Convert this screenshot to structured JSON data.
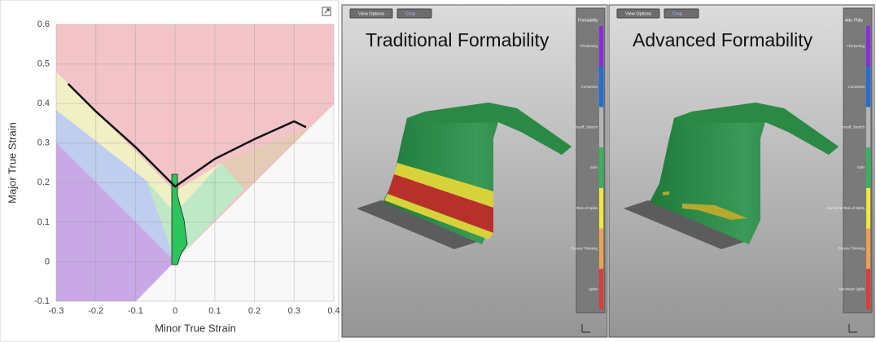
{
  "chart_data": {
    "type": "line",
    "x_label": "Minor True Strain",
    "y_label": "Major True Strain",
    "xlim": [
      -0.3,
      0.4
    ],
    "ylim": [
      -0.1,
      0.6
    ],
    "xticks": [
      -0.3,
      -0.2,
      -0.1,
      0,
      0.1,
      0.2,
      0.3,
      0.4
    ],
    "yticks": [
      -0.1,
      0,
      0.1,
      0.2,
      0.3,
      0.4,
      0.5,
      0.6
    ],
    "grid": true,
    "series": [
      {
        "color": "#111111",
        "x": [
          -0.27,
          -0.2,
          -0.1,
          0,
          0.1,
          0.2,
          0.3,
          0.33
        ],
        "values": [
          0.45,
          0.38,
          0.29,
          0.19,
          0.26,
          0.31,
          0.355,
          0.34
        ]
      }
    ]
  },
  "panels": [
    {
      "title": "Traditional Formability",
      "toolbar": [
        "View Options",
        "Crop"
      ],
      "legend_title": "Formability",
      "legend": [
        "Thickening",
        "Compress",
        "Insuff. Stretch",
        "Safe",
        "Risk of Splits",
        "Excess Thinning",
        "Splits"
      ],
      "colors": [
        "#8a2be2",
        "#1e6fd9",
        "#b5b5b5",
        "#2fb55a",
        "#f2ea3a",
        "#f0a050",
        "#e03a3a"
      ]
    },
    {
      "title": "Advanced Formability",
      "toolbar": [
        "View Options",
        "Crop"
      ],
      "legend_title": "Adv. Fblty",
      "legend": [
        "Thickening",
        "Compress",
        "Insuff. Stretch",
        "Safe",
        "Nonlinear Risk of Splits",
        "Excess Thinning",
        "Nonlinear Splits"
      ],
      "colors": [
        "#8a2be2",
        "#1e6fd9",
        "#b5b5b5",
        "#2fb55a",
        "#f2ea3a",
        "#f0a050",
        "#e03a3a"
      ]
    }
  ]
}
